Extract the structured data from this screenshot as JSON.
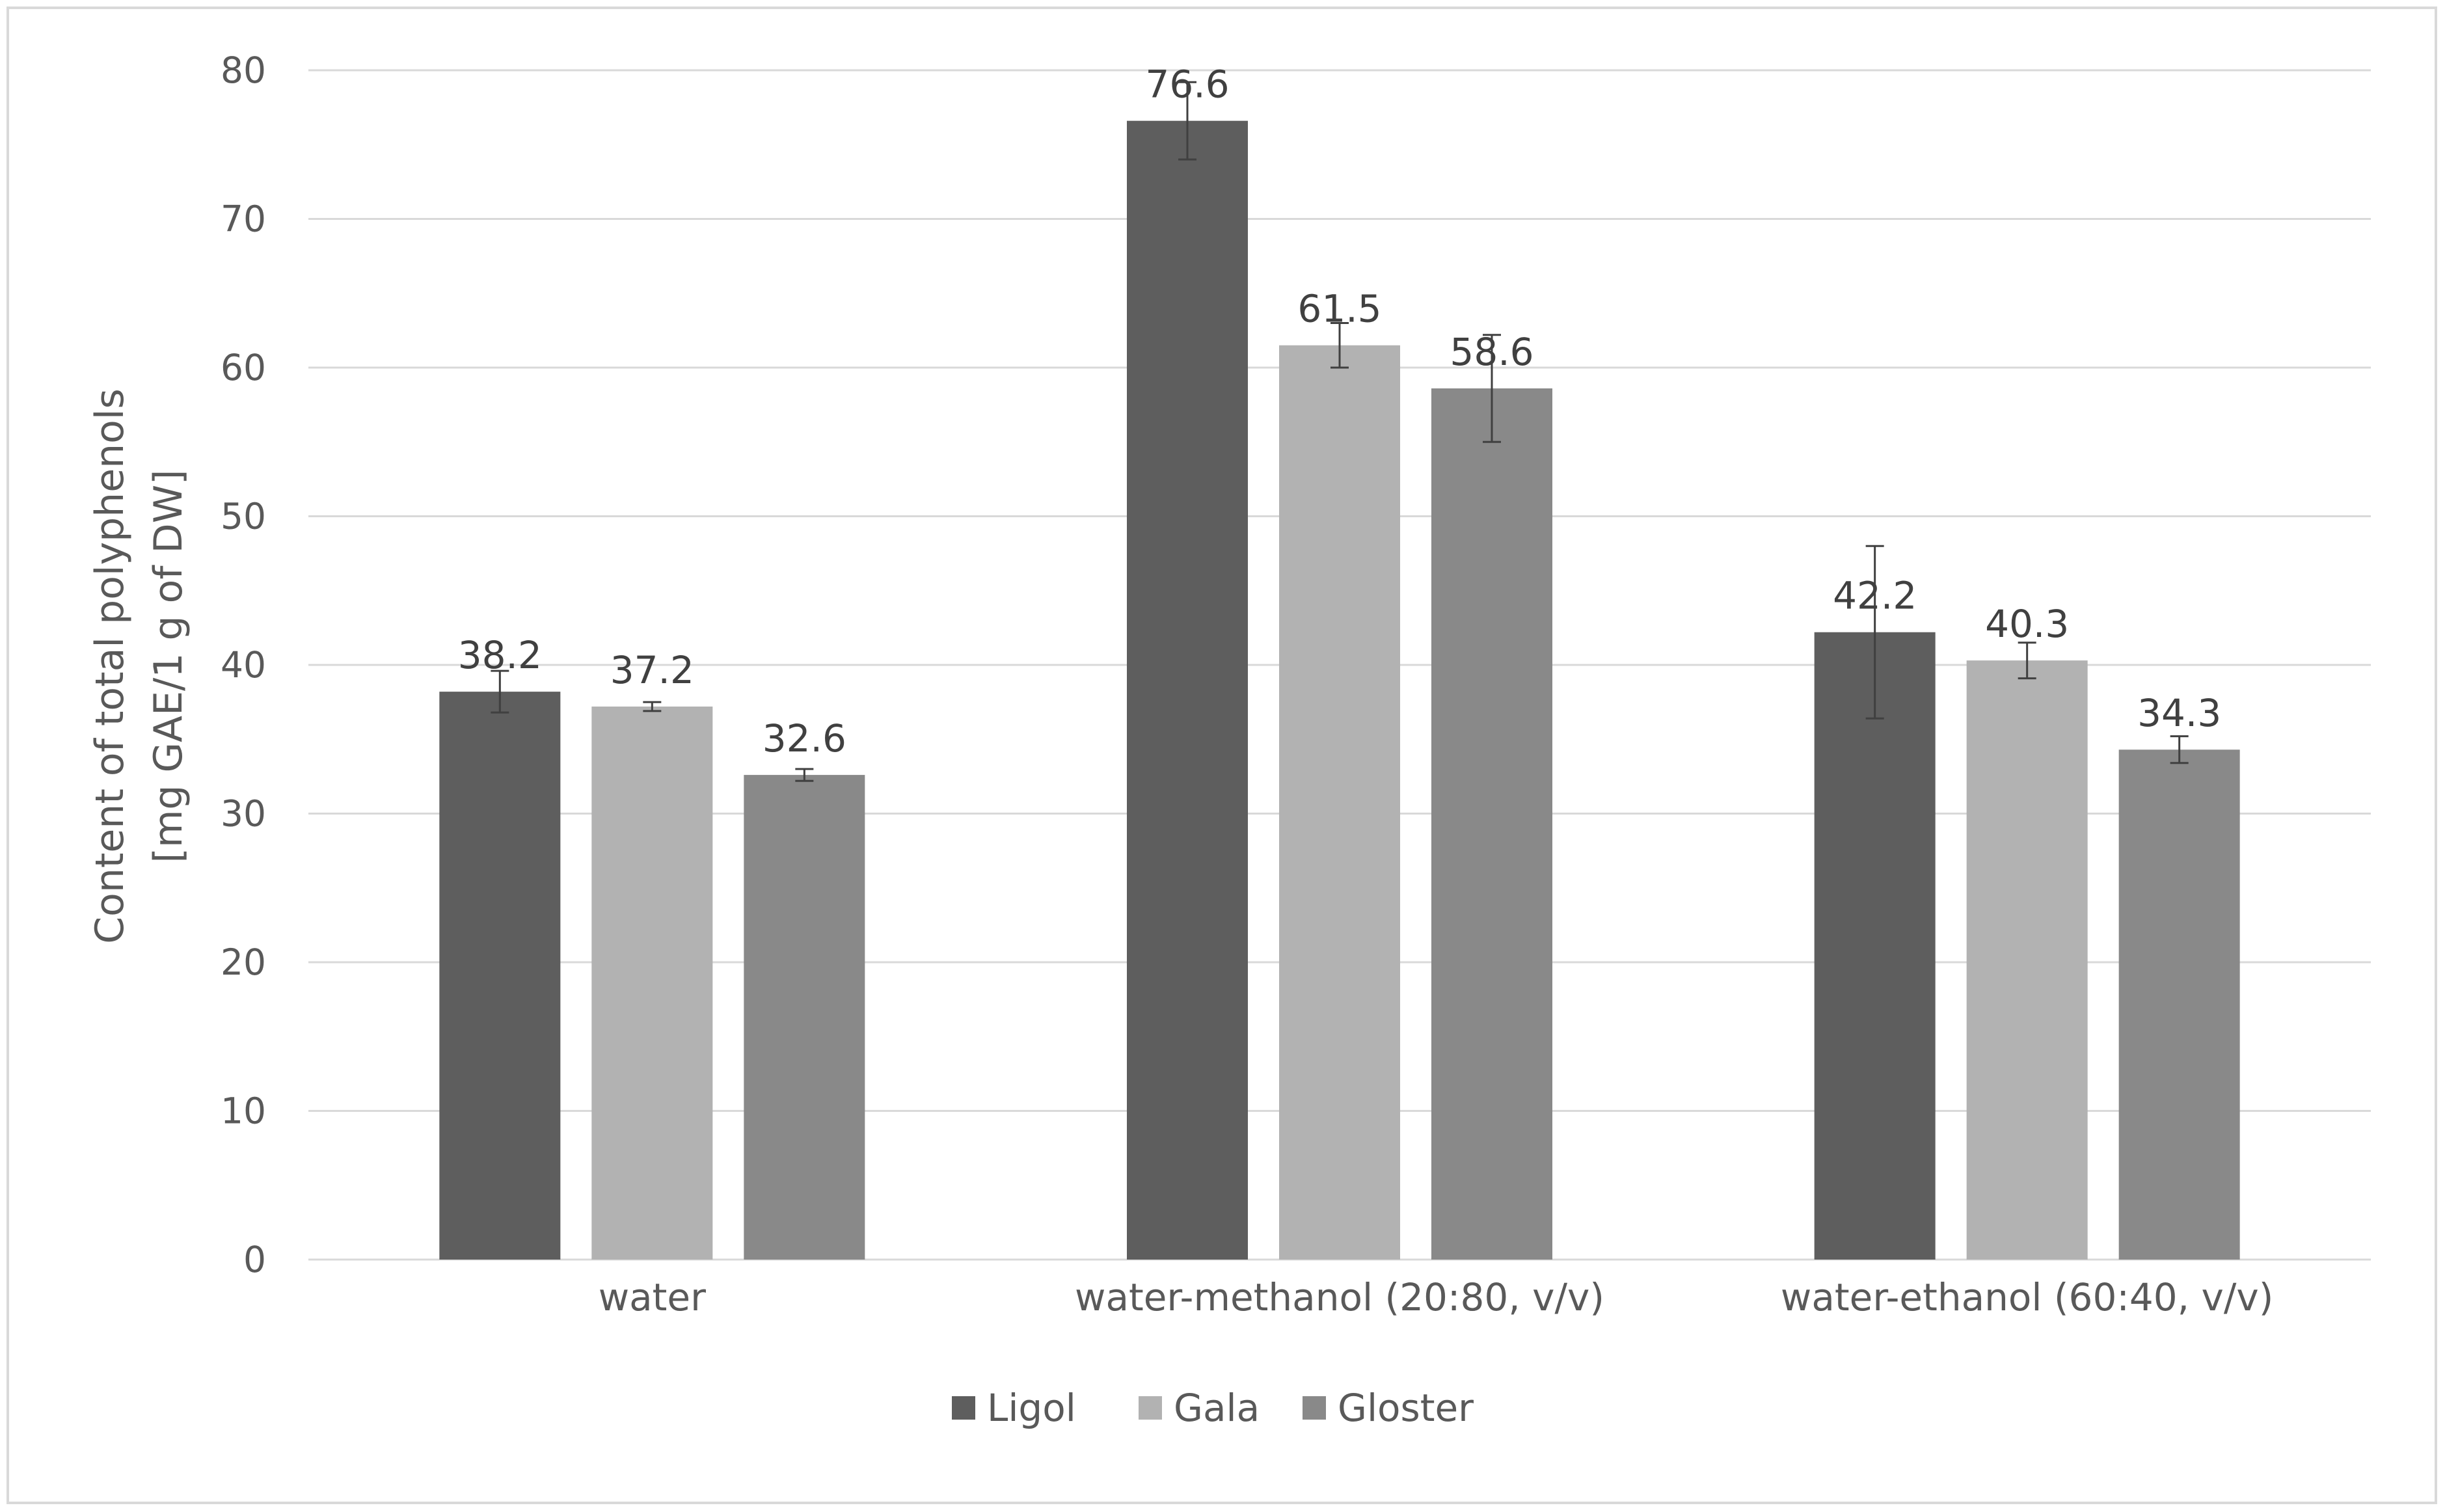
{
  "chart_data": {
    "type": "bar",
    "title": "",
    "xlabel": "",
    "ylabel_lines": [
      "Content of total polyphenols",
      "[mg GAE/1 g of DW]"
    ],
    "ylim": [
      0,
      80
    ],
    "yticks": [
      0,
      10,
      20,
      30,
      40,
      50,
      60,
      70,
      80
    ],
    "grid": true,
    "legend_position": "bottom",
    "categories": [
      "water",
      "water-methanol (20:80, v/v)",
      "water-ethanol (60:40, v/v)"
    ],
    "series": [
      {
        "name": "Ligol",
        "color": "#5e5e5e",
        "values": [
          38.2,
          76.6,
          42.2
        ],
        "labels": [
          "38.2",
          "76.6",
          "42.2"
        ],
        "errors": [
          1.4,
          2.6,
          5.8
        ]
      },
      {
        "name": "Gala",
        "color": "#b2b2b2",
        "values": [
          37.2,
          61.5,
          40.3
        ],
        "labels": [
          "37.2",
          "61.5",
          "40.3"
        ],
        "errors": [
          0.3,
          1.5,
          1.2
        ]
      },
      {
        "name": "Gloster",
        "color": "#898989",
        "values": [
          32.6,
          58.6,
          34.3
        ],
        "labels": [
          "32.6",
          "58.6",
          "34.3"
        ],
        "errors": [
          0.4,
          3.6,
          0.9
        ]
      }
    ],
    "gridline_color": "#d9d9d9",
    "errorbar_color": "#404040"
  }
}
